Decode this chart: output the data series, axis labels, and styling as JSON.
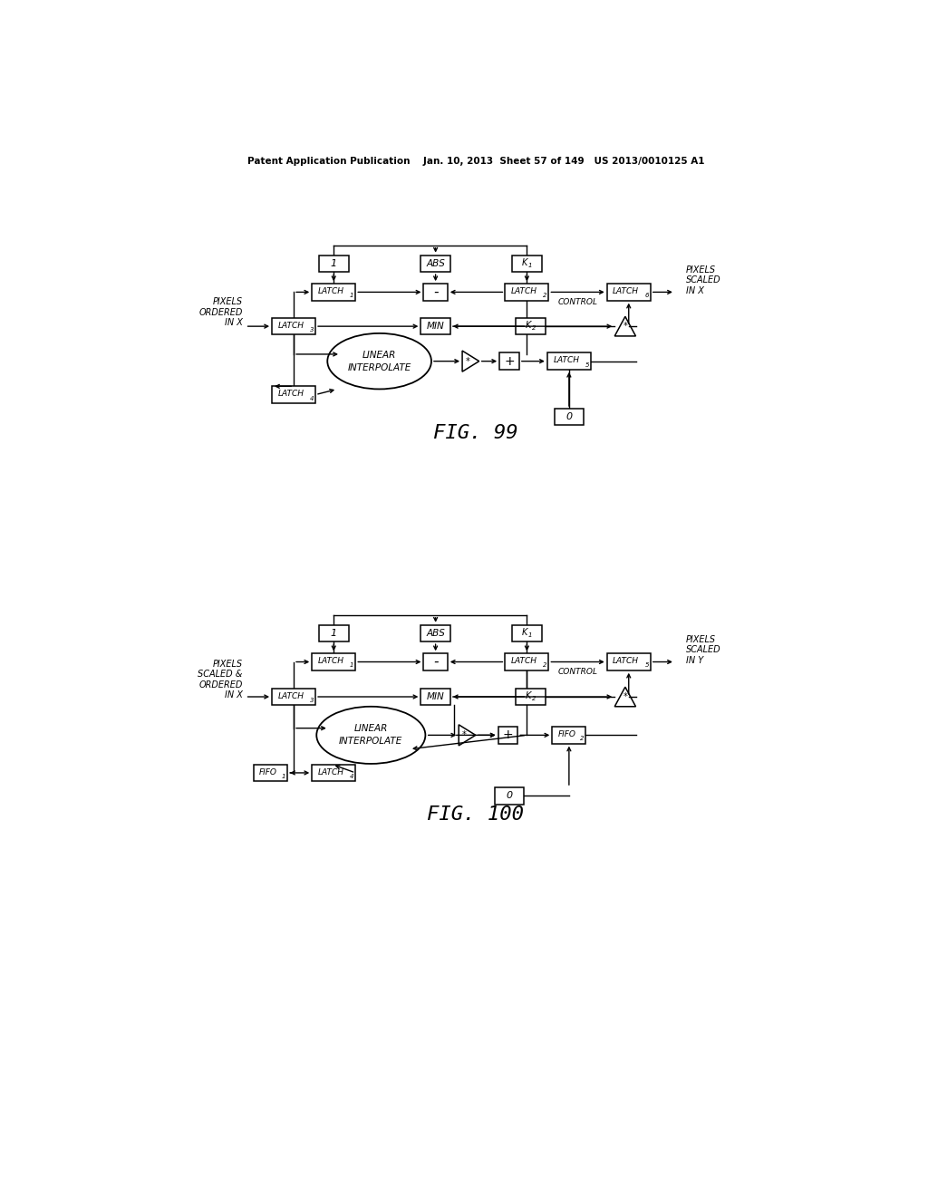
{
  "header": "Patent Application Publication    Jan. 10, 2013  Sheet 57 of 149   US 2013/0010125 A1",
  "fig99_label": "FIG. 99",
  "fig100_label": "FIG. 100",
  "bg_color": "#ffffff"
}
